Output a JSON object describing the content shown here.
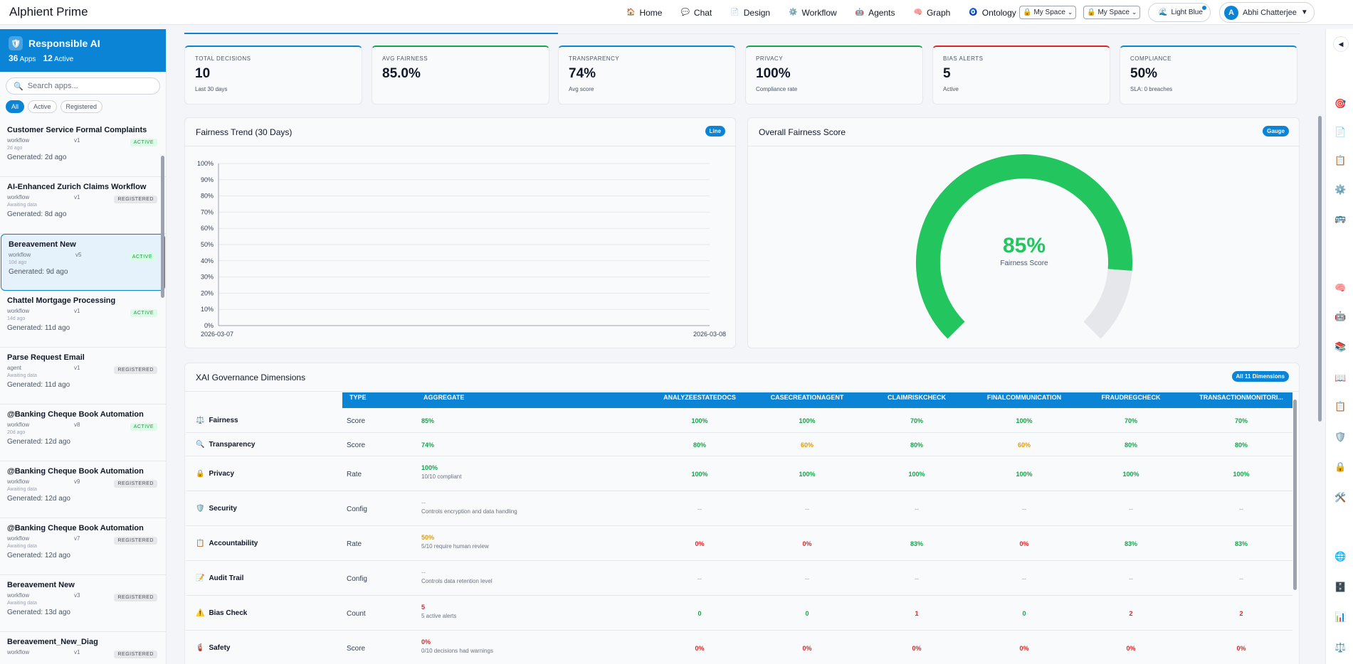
{
  "app": {
    "title": "Alphient Prime"
  },
  "nav": [
    {
      "label": "Home",
      "icon": "🏠"
    },
    {
      "label": "Chat",
      "icon": "💬"
    },
    {
      "label": "Design",
      "icon": "📄"
    },
    {
      "label": "Workflow",
      "icon": "⚙️"
    },
    {
      "label": "Agents",
      "icon": "🤖"
    },
    {
      "label": "Graph",
      "icon": "🧠"
    },
    {
      "label": "Ontology",
      "icon": "🧿"
    }
  ],
  "space_selectors": [
    {
      "label": "My Space",
      "icon": "🔒"
    },
    {
      "label": "My Space",
      "icon": "🔒"
    }
  ],
  "theme": {
    "label": "Light Blue",
    "icon": "🌊"
  },
  "user": {
    "initial": "A",
    "name": "Abhi Chatterjee"
  },
  "sidebar": {
    "title": "Responsible AI",
    "apps_count": "36",
    "apps_label": "Apps",
    "active_count": "12",
    "active_label": "Active",
    "search_placeholder": "Search apps...",
    "filters": [
      "All",
      "Active",
      "Registered"
    ],
    "items": [
      {
        "name": "Customer Service Formal Complaints",
        "type": "workflow",
        "version": "v1",
        "badge": "ACTIVE",
        "sub": "2d ago",
        "generated": "Generated: 2d ago"
      },
      {
        "name": "AI-Enhanced Zurich Claims Workflow",
        "type": "workflow",
        "version": "v1",
        "badge": "REGISTERED",
        "sub": "Awaiting data",
        "generated": "Generated: 8d ago"
      },
      {
        "name": "Bereavement New",
        "type": "workflow",
        "version": "v5",
        "badge": "ACTIVE",
        "sub": "10d ago",
        "generated": "Generated: 9d ago"
      },
      {
        "name": "Chattel Mortgage Processing",
        "type": "workflow",
        "version": "v1",
        "badge": "ACTIVE",
        "sub": "14d ago",
        "generated": "Generated: 11d ago"
      },
      {
        "name": "Parse Request Email",
        "type": "agent",
        "version": "v1",
        "badge": "REGISTERED",
        "sub": "Awaiting data",
        "generated": "Generated: 11d ago"
      },
      {
        "name": "@Banking Cheque Book Automation",
        "type": "workflow",
        "version": "v8",
        "badge": "ACTIVE",
        "sub": "20d ago",
        "generated": "Generated: 12d ago"
      },
      {
        "name": "@Banking Cheque Book Automation",
        "type": "workflow",
        "version": "v9",
        "badge": "REGISTERED",
        "sub": "Awaiting data",
        "generated": "Generated: 12d ago"
      },
      {
        "name": "@Banking Cheque Book Automation",
        "type": "workflow",
        "version": "v7",
        "badge": "REGISTERED",
        "sub": "Awaiting data",
        "generated": "Generated: 12d ago"
      },
      {
        "name": "Bereavement New",
        "type": "workflow",
        "version": "v3",
        "badge": "REGISTERED",
        "sub": "Awaiting data",
        "generated": "Generated: 13d ago"
      },
      {
        "name": "Bereavement_New_Diag",
        "type": "workflow",
        "version": "v1",
        "badge": "REGISTERED",
        "sub": "",
        "generated": ""
      }
    ]
  },
  "kpis": [
    {
      "label": "TOTAL DECISIONS",
      "value": "10",
      "sub": "Last 30 days",
      "accent": "#0b84d6"
    },
    {
      "label": "AVG FAIRNESS",
      "value": "85.0%",
      "sub": "",
      "accent": "#16a34a"
    },
    {
      "label": "TRANSPARENCY",
      "value": "74%",
      "sub": "Avg score",
      "accent": "#0b84d6"
    },
    {
      "label": "PRIVACY",
      "value": "100%",
      "sub": "Compliance rate",
      "accent": "#16a34a"
    },
    {
      "label": "BIAS ALERTS",
      "value": "5",
      "sub": "Active",
      "accent": "#dc2626"
    },
    {
      "label": "COMPLIANCE",
      "value": "50%",
      "sub": "SLA: 0 breaches",
      "accent": "#0b84d6"
    }
  ],
  "trend_panel": {
    "title": "Fairness Trend (30 Days)",
    "tag": "Line"
  },
  "gauge_panel": {
    "title": "Overall Fairness Score",
    "tag": "Gauge",
    "value_text": "85%",
    "label": "Fairness Score",
    "fraction": 0.85,
    "color": "#22c55e"
  },
  "chart_data": {
    "type": "line",
    "title": "Fairness Trend (30 Days)",
    "x": [
      "2026-03-07",
      "2026-03-08"
    ],
    "series": [],
    "yticks": [
      "0%",
      "10%",
      "20%",
      "30%",
      "40%",
      "50%",
      "60%",
      "70%",
      "80%",
      "90%",
      "100%"
    ],
    "ylim": [
      0,
      100
    ],
    "grid": true
  },
  "table": {
    "title": "XAI Governance Dimensions",
    "tag": "All 11 Dimensions",
    "headers": [
      "TYPE",
      "AGGREGATE",
      "ANALYZEESTATEDOCS",
      "CASECREATIONAGENT",
      "CLAIMRISKCHECK",
      "FINALCOMMUNICATION",
      "FRAUDREGCHECK",
      "TRANSACTIONMONITORI..."
    ],
    "rows": [
      {
        "name": "Fairness",
        "icon": "⚖️",
        "type": "Score",
        "agg": "85%",
        "agg_color": "green",
        "agg_sub": "",
        "values": [
          "100%",
          "100%",
          "70%",
          "100%",
          "70%",
          "70%"
        ],
        "colors": [
          "green",
          "green",
          "green",
          "green",
          "green",
          "green"
        ]
      },
      {
        "name": "Transparency",
        "icon": "🔍",
        "type": "Score",
        "agg": "74%",
        "agg_color": "green",
        "agg_sub": "",
        "values": [
          "80%",
          "60%",
          "80%",
          "60%",
          "80%",
          "80%"
        ],
        "colors": [
          "green",
          "orange",
          "green",
          "orange",
          "green",
          "green"
        ]
      },
      {
        "name": "Privacy",
        "icon": "🔒",
        "type": "Rate",
        "agg": "100%",
        "agg_color": "green",
        "agg_sub": "10/10 compliant",
        "values": [
          "100%",
          "100%",
          "100%",
          "100%",
          "100%",
          "100%"
        ],
        "colors": [
          "green",
          "green",
          "green",
          "green",
          "green",
          "green"
        ]
      },
      {
        "name": "Security",
        "icon": "🛡️",
        "type": "Config",
        "agg": "--",
        "agg_color": "muted",
        "agg_sub": "Controls encryption and data handling",
        "values": [
          "--",
          "--",
          "--",
          "--",
          "--",
          "--"
        ],
        "colors": [
          "muted",
          "muted",
          "muted",
          "muted",
          "muted",
          "muted"
        ]
      },
      {
        "name": "Accountability",
        "icon": "📋",
        "type": "Rate",
        "agg": "50%",
        "agg_color": "orange",
        "agg_sub": "5/10 require human review",
        "values": [
          "0%",
          "0%",
          "83%",
          "0%",
          "83%",
          "83%"
        ],
        "colors": [
          "red",
          "red",
          "green",
          "red",
          "green",
          "green"
        ]
      },
      {
        "name": "Audit Trail",
        "icon": "📝",
        "type": "Config",
        "agg": "--",
        "agg_color": "muted",
        "agg_sub": "Controls data retention level",
        "values": [
          "--",
          "--",
          "--",
          "--",
          "--",
          "--"
        ],
        "colors": [
          "muted",
          "muted",
          "muted",
          "muted",
          "muted",
          "muted"
        ]
      },
      {
        "name": "Bias Check",
        "icon": "⚠️",
        "type": "Count",
        "agg": "5",
        "agg_color": "red",
        "agg_sub": "5 active alerts",
        "values": [
          "0",
          "0",
          "1",
          "0",
          "2",
          "2"
        ],
        "colors": [
          "green",
          "green",
          "red",
          "green",
          "red",
          "red"
        ]
      },
      {
        "name": "Safety",
        "icon": "🧯",
        "type": "Score",
        "agg": "0%",
        "agg_color": "red",
        "agg_sub": "0/10 decisions had warnings",
        "values": [
          "0%",
          "0%",
          "0%",
          "0%",
          "0%",
          "0%"
        ],
        "colors": [
          "red",
          "red",
          "red",
          "red",
          "red",
          "red"
        ]
      }
    ]
  },
  "rail_icons": [
    "🎯",
    "📄",
    "📋",
    "⚙️",
    "🚌",
    "🧠",
    "🤖",
    "📚",
    "📖",
    "📋",
    "🛡️",
    "🔒",
    "🛠️",
    "🌐",
    "🗄️",
    "📊",
    "⚖️"
  ]
}
